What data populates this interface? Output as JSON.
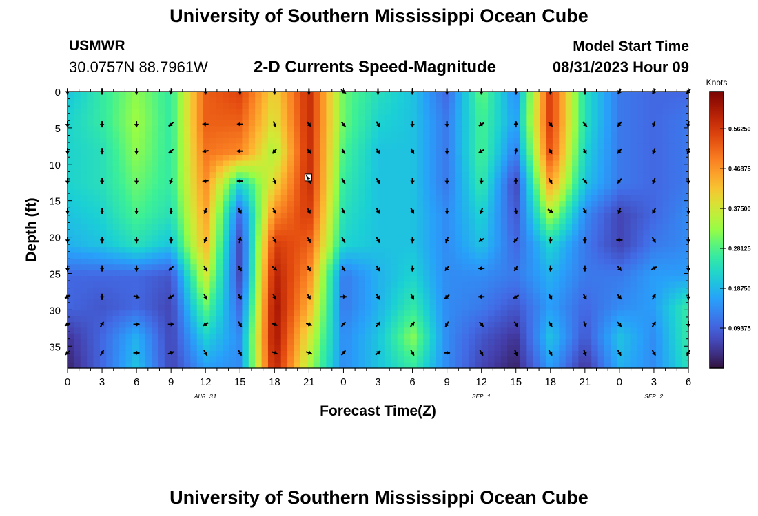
{
  "header": {
    "title": "University of Southern Mississippi Ocean Cube",
    "station": "USMWR",
    "coords": "30.0757N  88.7961W",
    "subtitle": "2-D Currents Speed-Magnitude",
    "model_label": "Model Start Time",
    "model_time": "08/31/2023 Hour 09"
  },
  "footer": {
    "title": "University of Southern Mississippi Ocean Cube"
  },
  "chart_data": {
    "type": "heatmap",
    "title": "2-D Currents Speed-Magnitude",
    "xlabel": "Forecast Time(Z)",
    "ylabel": "Depth (ft)",
    "x_hours": [
      0,
      54
    ],
    "x_tick_labels": [
      "0",
      "3",
      "6",
      "9",
      "12",
      "15",
      "18",
      "21",
      "0",
      "3",
      "6",
      "9",
      "12",
      "15",
      "18",
      "21",
      "0",
      "3",
      "6"
    ],
    "date_labels": [
      {
        "hour": 12,
        "text": "AUG 31"
      },
      {
        "hour": 36,
        "text": "SEP 1"
      },
      {
        "hour": 51,
        "text": "SEP 2"
      }
    ],
    "y_ticks": [
      0,
      5,
      10,
      15,
      20,
      25,
      30,
      35
    ],
    "ylim": [
      0,
      38
    ],
    "colorbar": {
      "label": "Knots",
      "ticks": [
        "0.56250",
        "0.46875",
        "0.37500",
        "0.28125",
        "0.18750",
        "0.09375"
      ],
      "tick_values": [
        0.5625,
        0.46875,
        0.375,
        0.28125,
        0.1875,
        0.09375
      ],
      "range": [
        0,
        0.65
      ]
    },
    "vector_hours": [
      0,
      3,
      6,
      9,
      12,
      15,
      18,
      21,
      24,
      27,
      30,
      33,
      36,
      39,
      42,
      45,
      48,
      51,
      54
    ],
    "vector_depths": [
      0,
      4.5,
      8.2,
      12.3,
      16.4,
      20.4,
      24.3,
      28.2,
      32.0,
      35.9
    ],
    "speed_grid_depths": [
      0,
      4.2,
      8.4,
      12.7,
      16.9,
      21.1,
      25.3,
      29.6,
      33.8,
      38
    ],
    "speed_grid": [
      [
        0.2,
        0.26,
        0.32,
        0.26,
        0.52,
        0.55,
        0.4,
        0.58,
        0.3,
        0.24,
        0.2,
        0.1,
        0.3,
        0.14,
        0.56,
        0.24,
        0.12,
        0.1,
        0.1
      ],
      [
        0.22,
        0.26,
        0.33,
        0.26,
        0.52,
        0.52,
        0.38,
        0.58,
        0.3,
        0.22,
        0.2,
        0.12,
        0.28,
        0.16,
        0.56,
        0.24,
        0.12,
        0.1,
        0.12
      ],
      [
        0.22,
        0.24,
        0.32,
        0.26,
        0.5,
        0.48,
        0.34,
        0.58,
        0.28,
        0.2,
        0.2,
        0.12,
        0.28,
        0.12,
        0.54,
        0.22,
        0.12,
        0.1,
        0.12
      ],
      [
        0.22,
        0.24,
        0.3,
        0.26,
        0.48,
        0.22,
        0.4,
        0.58,
        0.26,
        0.2,
        0.2,
        0.12,
        0.26,
        0.06,
        0.46,
        0.2,
        0.12,
        0.1,
        0.12
      ],
      [
        0.2,
        0.22,
        0.28,
        0.24,
        0.46,
        0.1,
        0.48,
        0.56,
        0.24,
        0.2,
        0.2,
        0.14,
        0.22,
        0.08,
        0.34,
        0.14,
        0.06,
        0.1,
        0.14
      ],
      [
        0.18,
        0.2,
        0.24,
        0.2,
        0.44,
        0.06,
        0.56,
        0.52,
        0.22,
        0.2,
        0.2,
        0.14,
        0.2,
        0.1,
        0.22,
        0.12,
        0.06,
        0.12,
        0.14
      ],
      [
        0.1,
        0.1,
        0.1,
        0.08,
        0.38,
        0.06,
        0.6,
        0.48,
        0.12,
        0.18,
        0.22,
        0.14,
        0.14,
        0.12,
        0.18,
        0.12,
        0.12,
        0.16,
        0.16
      ],
      [
        0.1,
        0.08,
        0.1,
        0.06,
        0.3,
        0.1,
        0.62,
        0.44,
        0.12,
        0.18,
        0.26,
        0.14,
        0.12,
        0.08,
        0.16,
        0.1,
        0.14,
        0.16,
        0.26
      ],
      [
        0.04,
        0.1,
        0.18,
        0.06,
        0.22,
        0.14,
        0.62,
        0.38,
        0.14,
        0.2,
        0.32,
        0.14,
        0.08,
        0.04,
        0.2,
        0.08,
        0.2,
        0.14,
        0.26
      ],
      [
        0.02,
        0.1,
        0.2,
        0.06,
        0.16,
        0.14,
        0.6,
        0.34,
        0.14,
        0.2,
        0.26,
        0.14,
        0.06,
        0.02,
        0.16,
        0.04,
        0.18,
        0.14,
        0.24
      ]
    ],
    "direction_grid_deg": [
      [
        180,
        180,
        180,
        200,
        180,
        180,
        180,
        180,
        130,
        180,
        180,
        180,
        180,
        180,
        180,
        180,
        210,
        210,
        220
      ],
      [
        180,
        180,
        180,
        230,
        270,
        270,
        160,
        140,
        140,
        150,
        180,
        180,
        240,
        0,
        140,
        140,
        220,
        200,
        190
      ],
      [
        180,
        180,
        180,
        230,
        260,
        270,
        220,
        140,
        150,
        150,
        150,
        180,
        240,
        10,
        150,
        150,
        220,
        200,
        200
      ],
      [
        180,
        180,
        180,
        200,
        260,
        270,
        160,
        140,
        150,
        150,
        180,
        180,
        180,
        0,
        150,
        140,
        220,
        200,
        180
      ],
      [
        180,
        180,
        180,
        180,
        200,
        150,
        150,
        150,
        150,
        150,
        150,
        180,
        200,
        170,
        120,
        150,
        200,
        210,
        180
      ],
      [
        180,
        180,
        180,
        180,
        200,
        10,
        150,
        150,
        150,
        150,
        180,
        200,
        240,
        220,
        180,
        180,
        270,
        150,
        180
      ],
      [
        180,
        180,
        180,
        230,
        150,
        150,
        130,
        150,
        150,
        150,
        180,
        220,
        270,
        210,
        180,
        180,
        140,
        60,
        180
      ],
      [
        240,
        180,
        110,
        240,
        150,
        150,
        150,
        150,
        90,
        150,
        150,
        230,
        270,
        240,
        150,
        150,
        140,
        30,
        180
      ],
      [
        240,
        30,
        90,
        90,
        240,
        150,
        110,
        110,
        40,
        40,
        40,
        210,
        140,
        150,
        150,
        160,
        140,
        30,
        180
      ],
      [
        230,
        30,
        90,
        70,
        150,
        150,
        110,
        110,
        40,
        50,
        150,
        90,
        150,
        160,
        150,
        160,
        150,
        150,
        210
      ]
    ],
    "cursor_marker": {
      "hour": 21,
      "depth": 11.9
    }
  }
}
